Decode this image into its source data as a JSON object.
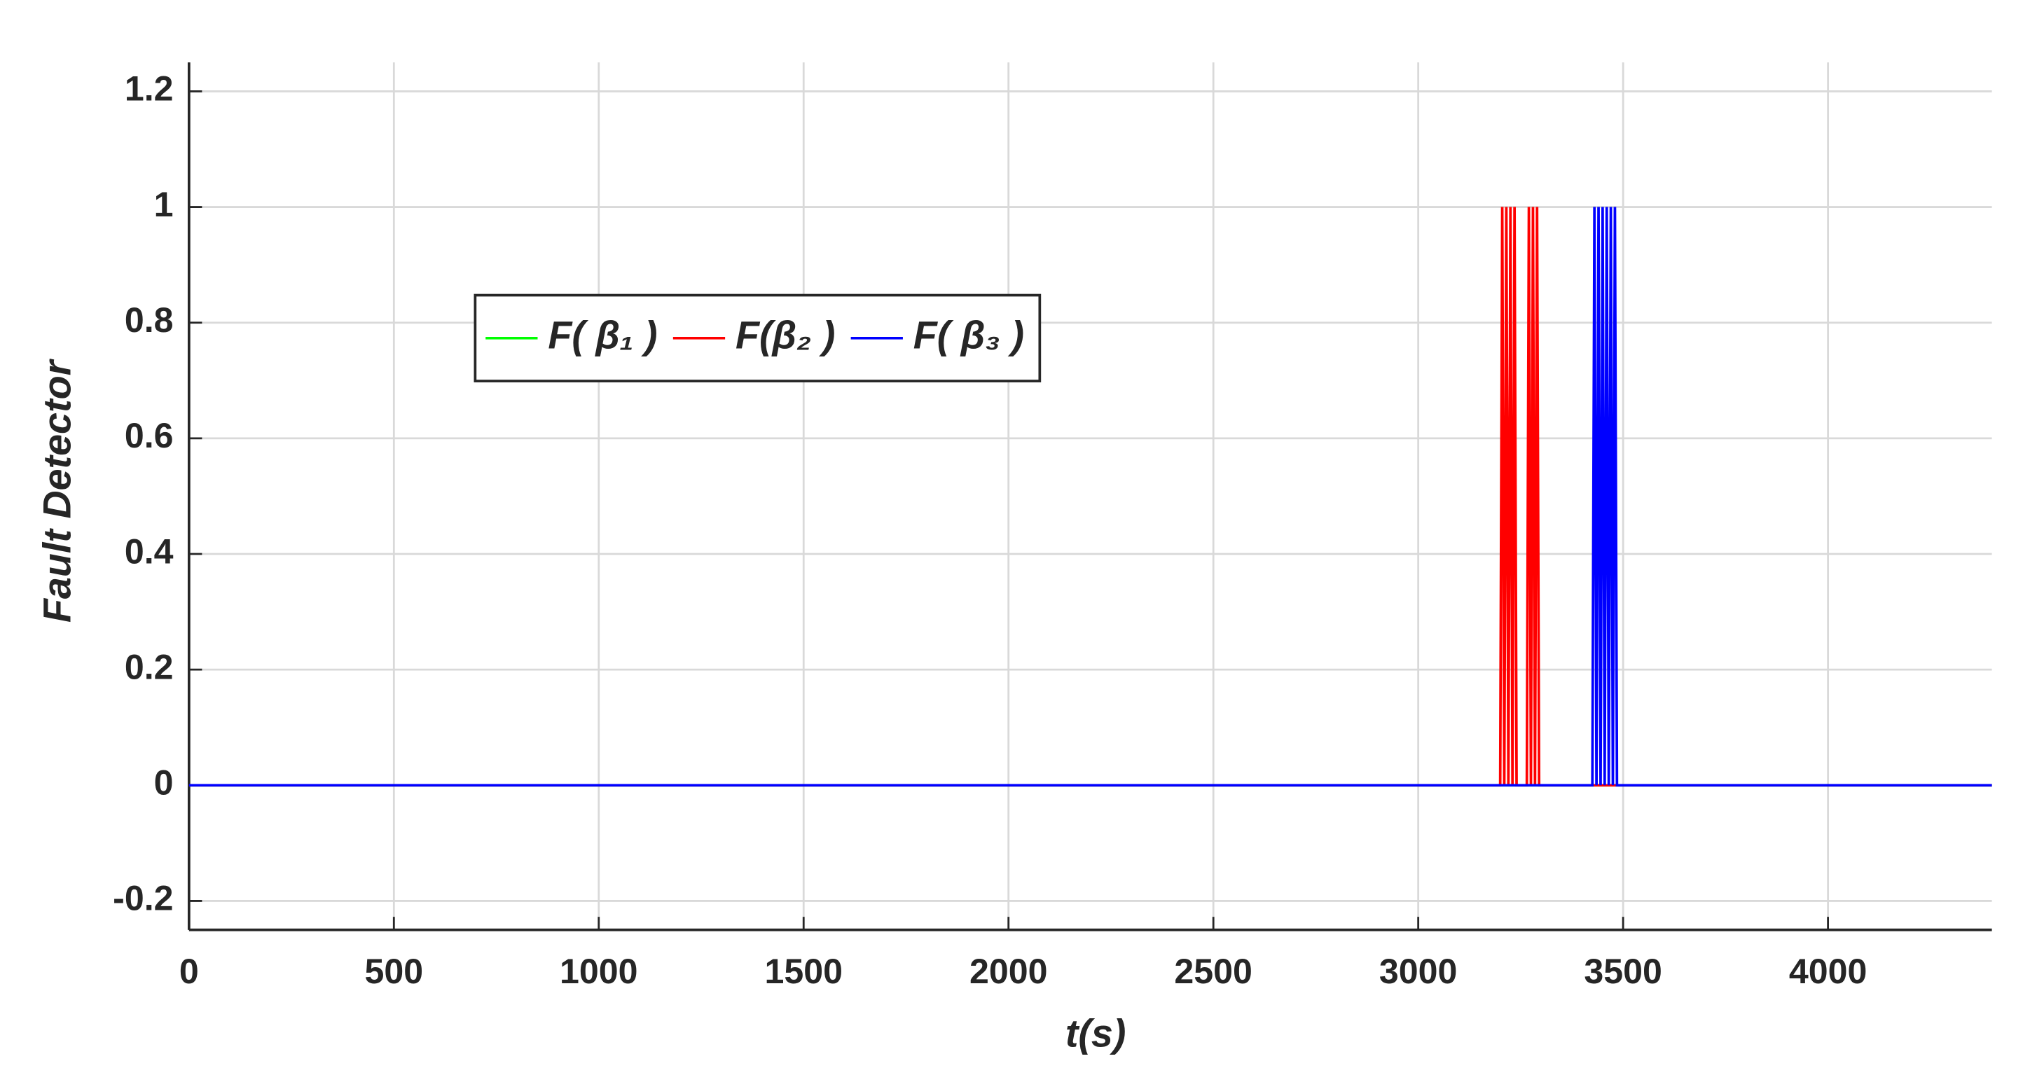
{
  "chart_data": {
    "type": "line",
    "xlabel": "t(s)",
    "ylabel": "Fault Detector",
    "x": [
      0,
      3200,
      3205,
      3210,
      3215,
      3220,
      3225,
      3230,
      3235,
      3240,
      3245,
      3250,
      3255,
      3260,
      3265,
      3270,
      3275,
      3280,
      3285,
      3290,
      3295,
      3300,
      3305,
      3310,
      3315,
      3320,
      3325,
      3330,
      3335,
      3340,
      3345,
      3350,
      3355,
      3360,
      3365,
      3370,
      3375,
      3380,
      3385,
      3390,
      3395,
      3400,
      3405,
      3410,
      3415,
      3420,
      3425,
      3430,
      3435,
      3440,
      3445,
      3450,
      3455,
      3460,
      3465,
      3470,
      3475,
      3480,
      3485,
      3490,
      4400
    ],
    "series": [
      {
        "name": "F( β₁ )",
        "color": "#00ff00",
        "values": [
          0,
          0,
          0,
          0,
          0,
          0,
          0,
          0,
          0,
          0,
          0,
          0,
          0,
          0,
          0,
          0,
          0,
          0,
          0,
          0,
          0,
          0,
          0,
          0,
          0,
          0,
          0,
          0,
          0,
          0,
          0,
          0,
          0,
          0,
          0,
          0,
          0,
          0,
          0,
          0,
          0,
          0,
          0,
          0,
          0,
          0,
          0,
          0,
          0,
          0,
          0,
          0,
          0,
          0,
          0,
          0,
          0,
          0,
          0,
          0,
          0
        ]
      },
      {
        "name": "F(β₂ )",
        "color": "#ff0000",
        "values": [
          0,
          0,
          1,
          0,
          1,
          0,
          1,
          0,
          1,
          0,
          0,
          0,
          0,
          0,
          0,
          1,
          0,
          1,
          0,
          1,
          0,
          0,
          0,
          0,
          0,
          0,
          0,
          0,
          0,
          0,
          0,
          0,
          0,
          0,
          0,
          0,
          0,
          0,
          0,
          0,
          0,
          0,
          0,
          0,
          0,
          0,
          0,
          0,
          0,
          0,
          0,
          0,
          0,
          0,
          0,
          0,
          0,
          0,
          0,
          0,
          0
        ]
      },
      {
        "name": "F( β₃ )",
        "color": "#0000ff",
        "values": [
          0,
          0,
          0,
          0,
          0,
          0,
          0,
          0,
          0,
          0,
          0,
          0,
          0,
          0,
          0,
          0,
          0,
          0,
          0,
          0,
          0,
          0,
          0,
          0,
          0,
          0,
          0,
          0,
          0,
          0,
          0,
          0,
          0,
          0,
          0,
          0,
          0,
          0,
          0,
          0,
          0,
          0,
          0,
          0,
          0,
          0,
          0,
          1,
          0,
          1,
          0,
          1,
          0,
          1,
          0,
          1,
          0,
          1,
          0,
          0,
          0
        ]
      }
    ],
    "xlim": [
      0,
      4400
    ],
    "ylim": [
      -0.25,
      1.25
    ],
    "xticks": [
      0,
      500,
      1000,
      1500,
      2000,
      2500,
      3000,
      3500,
      4000
    ],
    "yticks": [
      -0.2,
      0,
      0.2,
      0.4,
      0.6,
      0.8,
      1,
      1.2
    ],
    "grid": true,
    "legend": "upper left"
  }
}
